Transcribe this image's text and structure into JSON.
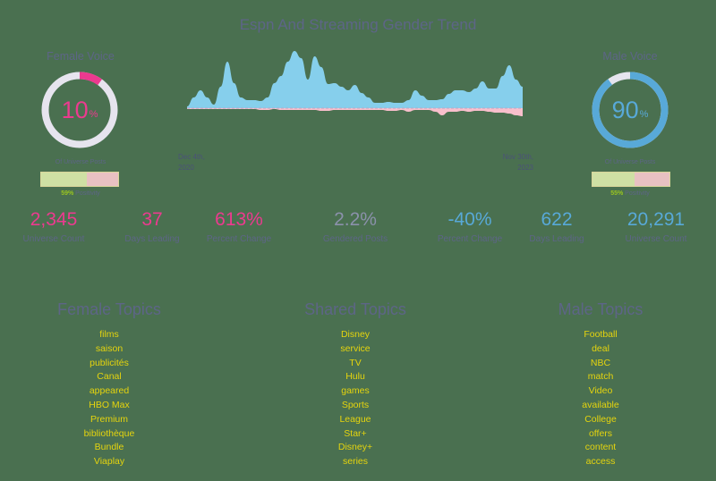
{
  "title": "Espn And Streaming Gender Trend",
  "colors": {
    "background": "#4a7050",
    "female": "#ec3a8f",
    "male": "#58a9d8",
    "ring_track": "#e6e4ee",
    "area_male": "#86cfec",
    "area_female": "#f9bfcc",
    "positive": "#cfe0a4",
    "negative": "#e8c1c2",
    "topic_text": "#e5d40e",
    "label_text": "#5d6587"
  },
  "female": {
    "label": "Female Voice",
    "percent": "10",
    "percent_symbol": "%",
    "share": 10,
    "sublabel": "Of Universe Posts",
    "positivity_value": "59%",
    "positivity_label": "Positivity",
    "positivity_share": 59
  },
  "male": {
    "label": "Male Voice",
    "percent": "90",
    "percent_symbol": "%",
    "share": 90,
    "sublabel": "Of Universe Posts",
    "positivity_value": "55%",
    "positivity_label": "Positivity",
    "positivity_share": 55
  },
  "dates": {
    "start_line1": "Dec 4th,",
    "start_line2": "2020",
    "end_line1": "Nov 30th,",
    "end_line2": "2023"
  },
  "stats": {
    "female_universe_count": {
      "value": "2,345",
      "label": "Universe Count"
    },
    "female_days_leading": {
      "value": "37",
      "label": "Days Leading"
    },
    "female_percent_change": {
      "value": "613%",
      "label": "Percent Change"
    },
    "gendered_posts": {
      "value": "2.2%",
      "label": "Gendered Posts"
    },
    "male_percent_change": {
      "value": "-40%",
      "label": "Percent Change"
    },
    "male_days_leading": {
      "value": "622",
      "label": "Days Leading"
    },
    "male_universe_count": {
      "value": "20,291",
      "label": "Universe Count"
    }
  },
  "topics": {
    "female": {
      "heading": "Female Topics",
      "items": [
        "films",
        "saison",
        "publicités",
        "Canal",
        "appeared",
        "HBO Max",
        "Premium",
        "bibliothèque",
        "Bundle",
        "Viaplay"
      ]
    },
    "shared": {
      "heading": "Shared Topics",
      "items": [
        "Disney",
        "service",
        "TV",
        "Hulu",
        "games",
        "Sports",
        "League",
        "Star+",
        "Disney+",
        "series"
      ]
    },
    "male": {
      "heading": "Male Topics",
      "items": [
        "Football",
        "deal",
        "NBC",
        "match",
        "Video",
        "available",
        "College",
        "offers",
        "content",
        "access"
      ]
    }
  },
  "chart_data": {
    "type": "area",
    "title": "Espn And Streaming Gender Trend",
    "x_start": "Dec 4th, 2020",
    "x_end": "Nov 30th, 2023",
    "xlabel": "",
    "ylabel": "",
    "grid": false,
    "legend": "none",
    "x": [
      0,
      1,
      2,
      3,
      4,
      5,
      6,
      7,
      8,
      9,
      10,
      11,
      12,
      13,
      14,
      15,
      16,
      17,
      18,
      19,
      20,
      21,
      22,
      23,
      24,
      25,
      26,
      27,
      28,
      29,
      30,
      31,
      32,
      33,
      34,
      35,
      36,
      37,
      38,
      39,
      40,
      41,
      42,
      43,
      44,
      45,
      46,
      47,
      48,
      49,
      50
    ],
    "series": [
      {
        "name": "Male Voice (above baseline)",
        "values": [
          2,
          12,
          20,
          12,
          4,
          24,
          52,
          28,
          12,
          9,
          9,
          8,
          12,
          28,
          36,
          52,
          64,
          56,
          32,
          58,
          46,
          27,
          28,
          24,
          20,
          26,
          17,
          12,
          6,
          6,
          7,
          6,
          6,
          9,
          20,
          14,
          9,
          9,
          10,
          16,
          20,
          20,
          18,
          22,
          30,
          22,
          22,
          36,
          48,
          32,
          24
        ]
      },
      {
        "name": "Female Voice (below baseline)",
        "values": [
          1,
          1,
          1,
          1,
          1,
          1,
          1,
          1,
          1,
          1,
          1,
          2,
          2,
          1,
          2,
          2,
          2,
          2,
          2,
          2,
          3,
          3,
          2,
          2,
          2,
          2,
          2,
          2,
          2,
          2,
          3,
          3,
          2,
          4,
          2,
          2,
          2,
          4,
          8,
          4,
          4,
          3,
          4,
          3,
          3,
          4,
          5,
          5,
          6,
          8,
          9
        ]
      }
    ]
  }
}
